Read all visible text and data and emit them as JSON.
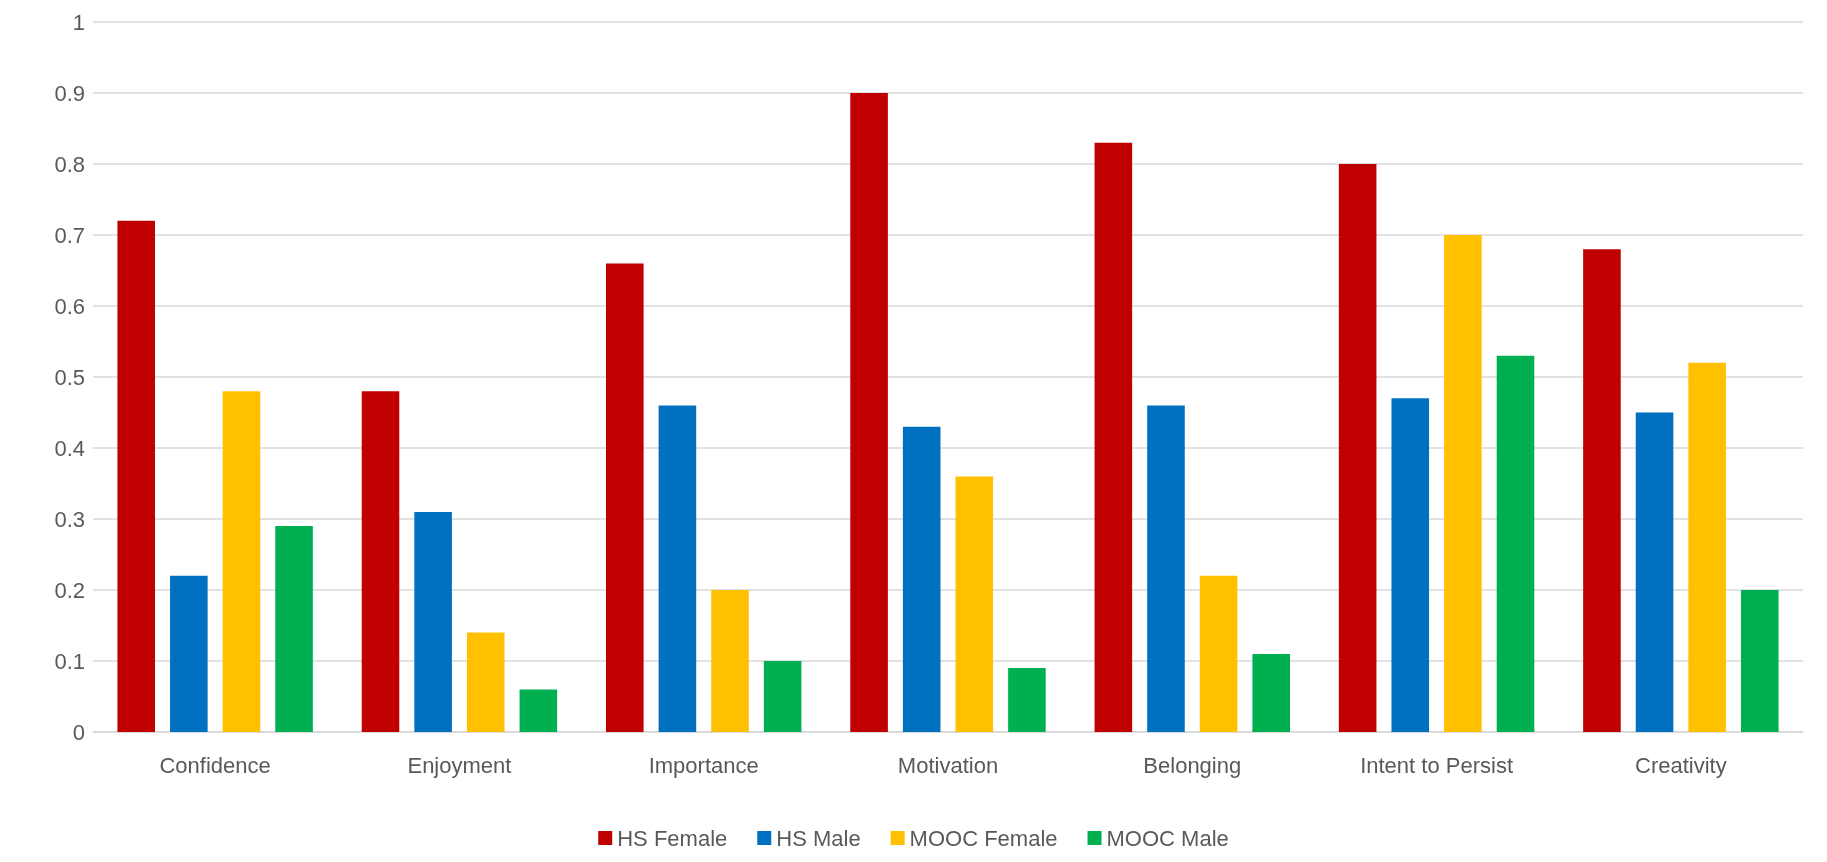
{
  "chart_data": {
    "type": "bar",
    "categories": [
      "Confidence",
      "Enjoyment",
      "Importance",
      "Motivation",
      "Belonging",
      "Intent to Persist",
      "Creativity"
    ],
    "series": [
      {
        "name": "HS Female",
        "color": "#c00000",
        "values": [
          0.72,
          0.48,
          0.66,
          0.9,
          0.83,
          0.8,
          0.68
        ]
      },
      {
        "name": "HS Male",
        "color": "#0070c0",
        "values": [
          0.22,
          0.31,
          0.46,
          0.43,
          0.46,
          0.47,
          0.45
        ]
      },
      {
        "name": "MOOC Female",
        "color": "#ffc000",
        "values": [
          0.48,
          0.14,
          0.2,
          0.36,
          0.22,
          0.7,
          0.52
        ]
      },
      {
        "name": "MOOC Male",
        "color": "#00b050",
        "values": [
          0.29,
          0.06,
          0.1,
          0.09,
          0.11,
          0.53,
          0.2
        ]
      }
    ],
    "ylim": [
      0,
      1
    ],
    "yticks": [
      0,
      0.1,
      0.2,
      0.3,
      0.4,
      0.5,
      0.6,
      0.7,
      0.8,
      0.9,
      1
    ],
    "grid": "y",
    "legend": "bottom"
  }
}
